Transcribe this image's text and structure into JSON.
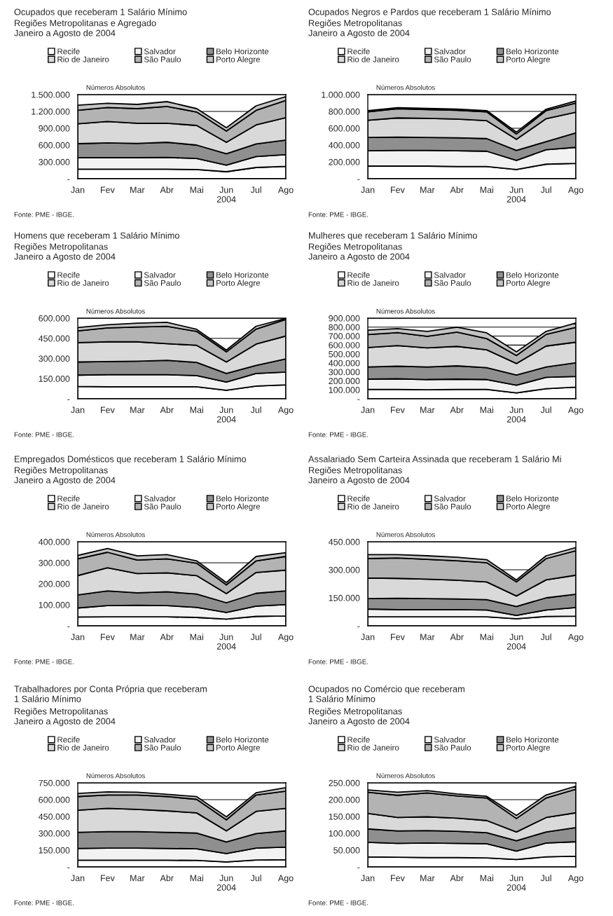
{
  "chart_data": [
    {
      "type": "area",
      "stacked": true,
      "title": "Ocupados que receberam 1 Salário Mínimo",
      "subtitle": "Regiões Metropolitanas e Agregado\nJaneiro a Agosto de 2004",
      "ylabel": "Números Absolutos",
      "categories": [
        "Jan",
        "Fev",
        "Mar",
        "Abr",
        "Mai",
        "Jun\n2004",
        "Jul",
        "Ago"
      ],
      "ylim": [
        0,
        1500000
      ],
      "yticks": [
        {
          "value": 0,
          "label": "-"
        },
        {
          "value": 300000,
          "label": "300.000"
        },
        {
          "value": 600000,
          "label": "600.000"
        },
        {
          "value": 900000,
          "label": "900.000"
        },
        {
          "value": 1200000,
          "label": "1.200.000"
        },
        {
          "value": 1500000,
          "label": "1.500.000"
        }
      ],
      "grid": "y",
      "legend": "top",
      "annotations": [
        "Fonte: PME - IBGE."
      ],
      "series": [
        {
          "name": "Recife",
          "color": "#ffffff",
          "values": [
            170000,
            170000,
            170000,
            170000,
            165000,
            125000,
            200000,
            220000
          ]
        },
        {
          "name": "Salvador",
          "color": "#f2f2f2",
          "values": [
            205000,
            205000,
            205000,
            210000,
            195000,
            118000,
            195000,
            210000
          ]
        },
        {
          "name": "Belo Horizonte",
          "color": "#8f8f8f",
          "values": [
            250000,
            265000,
            255000,
            270000,
            240000,
            202000,
            225000,
            260000
          ]
        },
        {
          "name": "Rio de Janeiro",
          "color": "#d9d9d9",
          "values": [
            355000,
            380000,
            360000,
            340000,
            350000,
            205000,
            340000,
            400000
          ]
        },
        {
          "name": "São Paulo",
          "color": "#b3b3b3",
          "values": [
            240000,
            250000,
            260000,
            300000,
            240000,
            200000,
            260000,
            305000
          ]
        },
        {
          "name": "Porto Alegre",
          "color": "#c4c4c4",
          "values": [
            90000,
            75000,
            75000,
            85000,
            60000,
            60000,
            80000,
            70000
          ]
        }
      ]
    },
    {
      "type": "area",
      "stacked": true,
      "title": "Ocupados Negros e Pardos que receberam 1 Salário Mínimo",
      "subtitle": "Regiões Metropolitanas\nJaneiro a Agosto de 2004",
      "ylabel": "Números Absolutos",
      "categories": [
        "Jan",
        "Fev",
        "Mar",
        "Abr",
        "Mai",
        "Jun\n2004",
        "Jul",
        "Ago"
      ],
      "ylim": [
        0,
        1000000
      ],
      "yticks": [
        {
          "value": 0,
          "label": "-"
        },
        {
          "value": 200000,
          "label": "200.000"
        },
        {
          "value": 400000,
          "label": "400.000"
        },
        {
          "value": 600000,
          "label": "600.000"
        },
        {
          "value": 800000,
          "label": "800.000"
        },
        {
          "value": 1000000,
          "label": "1.000.000"
        }
      ],
      "grid": "y",
      "legend": "top",
      "annotations": [
        "Fonte: PME - IBGE."
      ],
      "series": [
        {
          "name": "Recife",
          "color": "#ffffff",
          "values": [
            150000,
            150000,
            150000,
            145000,
            145000,
            110000,
            173000,
            182000
          ]
        },
        {
          "name": "Salvador",
          "color": "#f2f2f2",
          "values": [
            182000,
            186000,
            186000,
            187000,
            182000,
            108000,
            172000,
            191000
          ]
        },
        {
          "name": "Belo Horizonte",
          "color": "#8f8f8f",
          "values": [
            158000,
            159000,
            154000,
            154000,
            150000,
            118000,
            96000,
            172000
          ]
        },
        {
          "name": "Rio de Janeiro",
          "color": "#d9d9d9",
          "values": [
            205000,
            228000,
            228000,
            223000,
            213000,
            132000,
            273000,
            245000
          ]
        },
        {
          "name": "São Paulo",
          "color": "#b3b3b3",
          "values": [
            100000,
            109000,
            105000,
            105000,
            105000,
            64000,
            96000,
            110000
          ]
        },
        {
          "name": "Porto Alegre",
          "color": "#c4c4c4",
          "values": [
            15000,
            13000,
            13000,
            13000,
            15000,
            23000,
            17000,
            23000
          ]
        }
      ]
    },
    {
      "type": "area",
      "stacked": true,
      "title": "Homens que receberam 1 Salário Mínimo",
      "subtitle": "Regiões Metropolitanas\nJaneiro a Agosto de 2004",
      "ylabel": "Números Absolutos",
      "categories": [
        "Jan",
        "Fev",
        "Mar",
        "Abr",
        "Mai",
        "Jun\n2004",
        "Jul",
        "Ago"
      ],
      "ylim": [
        0,
        600000
      ],
      "yticks": [
        {
          "value": 0,
          "label": "-"
        },
        {
          "value": 150000,
          "label": "150.000"
        },
        {
          "value": 300000,
          "label": "300.000"
        },
        {
          "value": 450000,
          "label": "450.000"
        },
        {
          "value": 600000,
          "label": "600.000"
        }
      ],
      "grid": "y",
      "legend": "top",
      "annotations": [
        "Fonte: PME - IBGE."
      ],
      "series": [
        {
          "name": "Recife",
          "color": "#ffffff",
          "values": [
            92000,
            89000,
            89000,
            89000,
            89000,
            63000,
            95000,
            104000
          ]
        },
        {
          "name": "Salvador",
          "color": "#f2f2f2",
          "values": [
            84000,
            90000,
            90000,
            90000,
            84000,
            61000,
            93000,
            95000
          ]
        },
        {
          "name": "Belo Horizonte",
          "color": "#8f8f8f",
          "values": [
            98000,
            98000,
            101000,
            107000,
            98000,
            64000,
            60000,
            98000
          ]
        },
        {
          "name": "Rio de Janeiro",
          "color": "#d9d9d9",
          "values": [
            144000,
            147000,
            144000,
            124000,
            127000,
            86000,
            159000,
            170000
          ]
        },
        {
          "name": "São Paulo",
          "color": "#b3b3b3",
          "values": [
            87000,
            104000,
            110000,
            129000,
            104000,
            75000,
            112000,
            124000
          ]
        },
        {
          "name": "Porto Alegre",
          "color": "#c4c4c4",
          "values": [
            25000,
            23000,
            29000,
            30000,
            15000,
            14000,
            21000,
            7000
          ]
        }
      ]
    },
    {
      "type": "area",
      "stacked": true,
      "title": "Mulheres que receberam 1 Salário Mínimo",
      "subtitle": "Regiões Metropolitanas\nJaneiro a Agosto de 2004",
      "ylabel": "Números Absolutos",
      "categories": [
        "Jan",
        "Fev",
        "Mar",
        "Abr",
        "Mai",
        "Jun\n2004",
        "Jul",
        "Ago"
      ],
      "ylim": [
        0,
        900000
      ],
      "yticks": [
        {
          "value": 0,
          "label": "-"
        },
        {
          "value": 100000,
          "label": "100.000"
        },
        {
          "value": 200000,
          "label": "200.000"
        },
        {
          "value": 300000,
          "label": "300.000"
        },
        {
          "value": 400000,
          "label": "400.000"
        },
        {
          "value": 500000,
          "label": "500.000"
        },
        {
          "value": 600000,
          "label": "600.000"
        },
        {
          "value": 700000,
          "label": "700.000"
        },
        {
          "value": 800000,
          "label": "800.000"
        },
        {
          "value": 900000,
          "label": "900.000"
        }
      ],
      "grid": "y",
      "legend": "top",
      "annotations": [
        "Fonte: PME - IBGE."
      ],
      "series": [
        {
          "name": "Recife",
          "color": "#ffffff",
          "values": [
            104000,
            104000,
            100000,
            104000,
            104000,
            66000,
            113000,
            130000
          ]
        },
        {
          "name": "Salvador",
          "color": "#f2f2f2",
          "values": [
            115000,
            119000,
            115000,
            115000,
            111000,
            85000,
            127000,
            119000
          ]
        },
        {
          "name": "Belo Horizonte",
          "color": "#8f8f8f",
          "values": [
            136000,
            141000,
            140000,
            149000,
            132000,
            115000,
            115000,
            153000
          ]
        },
        {
          "name": "Rio de Janeiro",
          "color": "#d9d9d9",
          "values": [
            217000,
            230000,
            213000,
            217000,
            200000,
            128000,
            234000,
            230000
          ]
        },
        {
          "name": "São Paulo",
          "color": "#b3b3b3",
          "values": [
            145000,
            144000,
            130000,
            160000,
            125000,
            89000,
            130000,
            165000
          ]
        },
        {
          "name": "Porto Alegre",
          "color": "#c4c4c4",
          "values": [
            49000,
            45000,
            55000,
            55000,
            64000,
            42000,
            34000,
            50000
          ]
        }
      ]
    },
    {
      "type": "area",
      "stacked": true,
      "title": "Empregados Domésticos que receberam 1 Salário Mínimo",
      "subtitle": "Regiões Metropolitanas\nJaneiro a Agosto de 2004",
      "ylabel": "Números Absolutos",
      "categories": [
        "Jan",
        "Fev",
        "Mar",
        "Abr",
        "Mai",
        "Jun\n2004",
        "Jul",
        "Ago"
      ],
      "ylim": [
        0,
        400000
      ],
      "yticks": [
        {
          "value": 0,
          "label": "-"
        },
        {
          "value": 100000,
          "label": "100.000"
        },
        {
          "value": 200000,
          "label": "200.000"
        },
        {
          "value": 300000,
          "label": "300.000"
        },
        {
          "value": 400000,
          "label": "400.000"
        }
      ],
      "grid": "y",
      "legend": "top",
      "annotations": [
        "Fonte: PME - IBGE."
      ],
      "series": [
        {
          "name": "Recife",
          "color": "#ffffff",
          "values": [
            42000,
            43000,
            43000,
            43000,
            40000,
            32000,
            45000,
            47000
          ]
        },
        {
          "name": "Salvador",
          "color": "#f2f2f2",
          "values": [
            43000,
            53000,
            55000,
            53000,
            48000,
            32000,
            49000,
            54000
          ]
        },
        {
          "name": "Belo Horizonte",
          "color": "#8f8f8f",
          "values": [
            62000,
            70000,
            59000,
            66000,
            63000,
            46000,
            61000,
            65000
          ]
        },
        {
          "name": "Rio de Janeiro",
          "color": "#d9d9d9",
          "values": [
            92000,
            110000,
            92000,
            90000,
            88000,
            43000,
            99000,
            99000
          ]
        },
        {
          "name": "São Paulo",
          "color": "#b3b3b3",
          "values": [
            80000,
            74000,
            64000,
            67000,
            59000,
            42000,
            55000,
            65000
          ]
        },
        {
          "name": "Porto Alegre",
          "color": "#c4c4c4",
          "values": [
            16000,
            18000,
            20000,
            20000,
            11000,
            11000,
            21000,
            18000
          ]
        }
      ]
    },
    {
      "type": "area",
      "stacked": true,
      "title": "Assalariado Sem Carteira Assinada que receberam 1 Salário Mi",
      "subtitle": "Regiões Metropolitanas\nJaneiro a Agosto de 2004",
      "ylabel": "Números Absolutos",
      "categories": [
        "Jan",
        "Fev",
        "Mar",
        "Abr",
        "Mai",
        "Jun\n2004",
        "Jul",
        "Ago"
      ],
      "ylim": [
        0,
        450000
      ],
      "yticks": [
        {
          "value": 0,
          "label": "-"
        },
        {
          "value": 150000,
          "label": "150.000"
        },
        {
          "value": 300000,
          "label": "300.000"
        },
        {
          "value": 450000,
          "label": "450.000"
        }
      ],
      "grid": "y",
      "legend": "top",
      "annotations": [
        "Fonte: PME - IBGE."
      ],
      "series": [
        {
          "name": "Recife",
          "color": "#ffffff",
          "values": [
            48000,
            48000,
            48000,
            48000,
            48000,
            38000,
            50000,
            52000
          ]
        },
        {
          "name": "Salvador",
          "color": "#f2f2f2",
          "values": [
            42000,
            39000,
            39000,
            39000,
            37000,
            18000,
            35000,
            46000
          ]
        },
        {
          "name": "Belo Horizonte",
          "color": "#8f8f8f",
          "values": [
            56000,
            61000,
            59000,
            57000,
            55000,
            48000,
            65000,
            71000
          ]
        },
        {
          "name": "Rio de Janeiro",
          "color": "#d9d9d9",
          "values": [
            110000,
            106000,
            104000,
            100000,
            95000,
            56000,
            96000,
            102000
          ]
        },
        {
          "name": "São Paulo",
          "color": "#b3b3b3",
          "values": [
            104000,
            109000,
            106000,
            104000,
            103000,
            75000,
            114000,
            131000
          ]
        },
        {
          "name": "Porto Alegre",
          "color": "#c4c4c4",
          "values": [
            21000,
            18000,
            19000,
            19000,
            16000,
            11000,
            15000,
            17000
          ]
        }
      ]
    },
    {
      "type": "area",
      "stacked": true,
      "title": "Trabalhadores por Conta Própria que receberam\n1 Salário Mínimo",
      "subtitle": "Regiões Metropolitanas\nJaneiro a Agosto de 2004",
      "ylabel": "Números Absolutos",
      "categories": [
        "Jan",
        "Fev",
        "Mar",
        "Abr",
        "Mai",
        "Jun\n2004",
        "Jul",
        "Ago"
      ],
      "ylim": [
        0,
        750000
      ],
      "yticks": [
        {
          "value": 0,
          "label": "-"
        },
        {
          "value": 150000,
          "label": "150.000"
        },
        {
          "value": 300000,
          "label": "300.000"
        },
        {
          "value": 450000,
          "label": "450.000"
        },
        {
          "value": 600000,
          "label": "600.000"
        },
        {
          "value": 750000,
          "label": "750.000"
        }
      ],
      "grid": "y",
      "legend": "top",
      "annotations": [
        "Fonte: PME - IBGE."
      ],
      "series": [
        {
          "name": "Recife",
          "color": "#ffffff",
          "values": [
            60000,
            60000,
            60000,
            60000,
            58000,
            45000,
            62000,
            65000
          ]
        },
        {
          "name": "Salvador",
          "color": "#f2f2f2",
          "values": [
            105000,
            108000,
            108000,
            105000,
            104000,
            75000,
            106000,
            112000
          ]
        },
        {
          "name": "Belo Horizonte",
          "color": "#8f8f8f",
          "values": [
            144000,
            147000,
            147000,
            144000,
            140000,
            102000,
            130000,
            145000
          ]
        },
        {
          "name": "Rio de Janeiro",
          "color": "#d9d9d9",
          "values": [
            197000,
            208000,
            198000,
            191000,
            180000,
            100000,
            198000,
            201000
          ]
        },
        {
          "name": "São Paulo",
          "color": "#b3b3b3",
          "values": [
            122000,
            119000,
            129000,
            128000,
            121000,
            98000,
            146000,
            153000
          ]
        },
        {
          "name": "Porto Alegre",
          "color": "#c4c4c4",
          "values": [
            27000,
            27000,
            24000,
            20000,
            24000,
            27000,
            20000,
            31000
          ]
        }
      ]
    },
    {
      "type": "area",
      "stacked": true,
      "title": "Ocupados no Comércio que receberam\n1 Salário Mínimo",
      "subtitle": "Regiões Metropolitanas\nJaneiro a Agosto de 2004",
      "ylabel": "Números Absolutos",
      "categories": [
        "Jan",
        "Fev",
        "Mar",
        "Abr",
        "Mai",
        "Jun\n2004",
        "Jul",
        "Ago"
      ],
      "ylim": [
        0,
        250000
      ],
      "yticks": [
        {
          "value": 0,
          "label": "-"
        },
        {
          "value": 50000,
          "label": "50.000"
        },
        {
          "value": 100000,
          "label": "100.000"
        },
        {
          "value": 150000,
          "label": "150.000"
        },
        {
          "value": 200000,
          "label": "200.000"
        },
        {
          "value": 250000,
          "label": "250.000"
        }
      ],
      "grid": "y",
      "legend": "top",
      "annotations": [
        "Fonte: PME - IBGE."
      ],
      "series": [
        {
          "name": "Recife",
          "color": "#ffffff",
          "values": [
            30000,
            29000,
            28000,
            28000,
            27000,
            22000,
            30000,
            32000
          ]
        },
        {
          "name": "Salvador",
          "color": "#f2f2f2",
          "values": [
            43000,
            41000,
            43000,
            42000,
            42000,
            25000,
            41000,
            43000
          ]
        },
        {
          "name": "Belo Horizonte",
          "color": "#8f8f8f",
          "values": [
            40000,
            37000,
            37000,
            36000,
            33000,
            31000,
            33000,
            42000
          ]
        },
        {
          "name": "Rio de Janeiro",
          "color": "#d9d9d9",
          "values": [
            46000,
            40000,
            41000,
            39000,
            36000,
            26000,
            43000,
            44000
          ]
        },
        {
          "name": "São Paulo",
          "color": "#b3b3b3",
          "values": [
            63000,
            66000,
            71000,
            66000,
            67000,
            40000,
            58000,
            70000
          ]
        },
        {
          "name": "Porto Alegre",
          "color": "#c4c4c4",
          "values": [
            7000,
            9000,
            7000,
            6000,
            5000,
            9000,
            9000,
            9000
          ]
        }
      ]
    }
  ]
}
